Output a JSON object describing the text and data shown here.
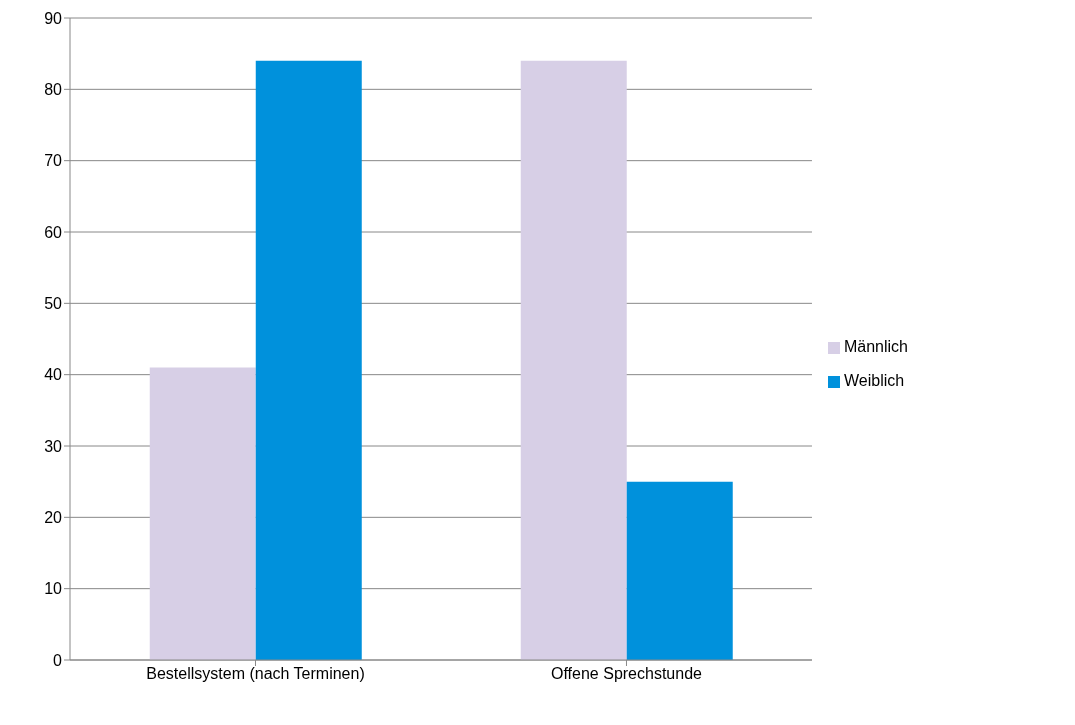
{
  "chart_data": {
    "type": "bar",
    "categories": [
      "Bestellsystem (nach Terminen)",
      "Offene Sprechstunde"
    ],
    "series": [
      {
        "name": "Männlich",
        "color": "#d7cfe6",
        "values": [
          41,
          84
        ]
      },
      {
        "name": "Weiblich",
        "color": "#0091dc",
        "values": [
          84,
          25
        ]
      }
    ],
    "ylim": [
      0,
      90
    ],
    "yticks": [
      0,
      10,
      20,
      30,
      40,
      50,
      60,
      70,
      80,
      90
    ],
    "grid": "y",
    "legend": "right"
  }
}
